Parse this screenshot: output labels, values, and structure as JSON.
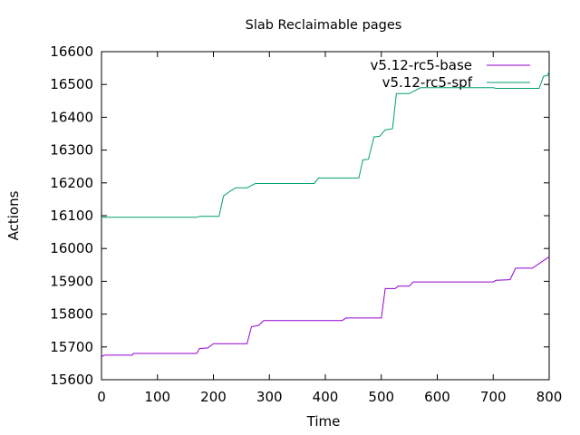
{
  "chart_data": {
    "type": "line",
    "title": "Slab Reclaimable pages",
    "xlabel": "Time",
    "ylabel": "Actions",
    "xlim": [
      0,
      800
    ],
    "ylim": [
      15600,
      16600
    ],
    "xticks": [
      0,
      100,
      200,
      300,
      400,
      500,
      600,
      700,
      800
    ],
    "yticks": [
      15600,
      15700,
      15800,
      15900,
      16000,
      16100,
      16200,
      16300,
      16400,
      16500,
      16600
    ],
    "grid": false,
    "legend": "top-right",
    "series": [
      {
        "name": "v5.12-rc5-base",
        "color": "#9400d3",
        "points": [
          [
            0,
            15670
          ],
          [
            5,
            15675
          ],
          [
            55,
            15675
          ],
          [
            57,
            15680
          ],
          [
            170,
            15680
          ],
          [
            175,
            15695
          ],
          [
            190,
            15697
          ],
          [
            200,
            15710
          ],
          [
            260,
            15710
          ],
          [
            268,
            15762
          ],
          [
            280,
            15765
          ],
          [
            290,
            15780
          ],
          [
            430,
            15780
          ],
          [
            437,
            15788
          ],
          [
            500,
            15788
          ],
          [
            507,
            15878
          ],
          [
            525,
            15878
          ],
          [
            530,
            15885
          ],
          [
            550,
            15885
          ],
          [
            557,
            15898
          ],
          [
            700,
            15898
          ],
          [
            705,
            15903
          ],
          [
            730,
            15905
          ],
          [
            740,
            15940
          ],
          [
            770,
            15940
          ],
          [
            800,
            15975
          ]
        ]
      },
      {
        "name": "v5.12-rc5-spf",
        "color": "#009e73",
        "points": [
          [
            0,
            16095
          ],
          [
            170,
            16095
          ],
          [
            175,
            16098
          ],
          [
            210,
            16098
          ],
          [
            218,
            16160
          ],
          [
            230,
            16175
          ],
          [
            240,
            16185
          ],
          [
            260,
            16185
          ],
          [
            275,
            16198
          ],
          [
            380,
            16198
          ],
          [
            388,
            16215
          ],
          [
            460,
            16215
          ],
          [
            467,
            16270
          ],
          [
            477,
            16272
          ],
          [
            487,
            16340
          ],
          [
            497,
            16342
          ],
          [
            507,
            16362
          ],
          [
            520,
            16365
          ],
          [
            527,
            16472
          ],
          [
            550,
            16472
          ],
          [
            570,
            16490
          ],
          [
            700,
            16490
          ],
          [
            705,
            16488
          ],
          [
            782,
            16488
          ],
          [
            790,
            16525
          ],
          [
            797,
            16527
          ],
          [
            800,
            16540
          ]
        ]
      }
    ]
  }
}
